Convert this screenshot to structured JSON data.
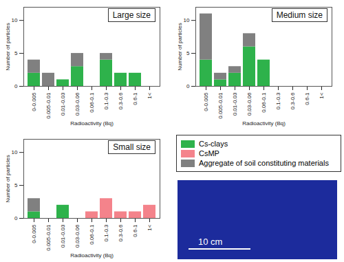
{
  "chart_data": [
    {
      "type": "bar",
      "title": "Large size",
      "stacked": true,
      "x_label": "Radioactivity (Bq)",
      "y_label": "Number of particles",
      "categories": [
        "0-0.005",
        "0.005-0.01",
        "0.01-0.03",
        "0.03-0.06",
        "0.06-0.1",
        "0.1-0.3",
        "0.3-0.6",
        "0.6-1",
        "1<"
      ],
      "series": [
        {
          "name": "Cs-clays",
          "color": "#2eb24b",
          "values": [
            2,
            0,
            1,
            3,
            0,
            4,
            2,
            2,
            0
          ]
        },
        {
          "name": "CsMP",
          "color": "#f4838b",
          "values": [
            0,
            0,
            0,
            0,
            0,
            0,
            0,
            0,
            0
          ]
        },
        {
          "name": "Aggregate of soil constituting materials",
          "color": "#808080",
          "values": [
            2,
            2,
            0,
            2,
            0,
            1,
            0,
            0,
            0
          ]
        }
      ],
      "ylim": [
        0,
        12
      ],
      "yticks": [
        0,
        5,
        10
      ]
    },
    {
      "type": "bar",
      "title": "Medium size",
      "stacked": true,
      "x_label": "Radioactivity (Bq)",
      "y_label": "Number of particles",
      "categories": [
        "0-0.005",
        "0.005-0.01",
        "0.01-0.03",
        "0.03-0.06",
        "0.06-0.1",
        "0.1-0.3",
        "0.3-0.6",
        "0.6-1",
        "1<"
      ],
      "series": [
        {
          "name": "Cs-clays",
          "color": "#2eb24b",
          "values": [
            4,
            1,
            2,
            6,
            4,
            0,
            0,
            0,
            0
          ]
        },
        {
          "name": "CsMP",
          "color": "#f4838b",
          "values": [
            0,
            0,
            0,
            0,
            0,
            0,
            0,
            0,
            0
          ]
        },
        {
          "name": "Aggregate of soil constituting materials",
          "color": "#808080",
          "values": [
            7,
            1,
            1,
            2,
            0,
            0,
            0,
            0,
            0
          ]
        }
      ],
      "ylim": [
        0,
        12
      ],
      "yticks": [
        0,
        5,
        10
      ]
    },
    {
      "type": "bar",
      "title": "Small size",
      "stacked": true,
      "x_label": "Radioactivity (Bq)",
      "y_label": "Number of particles",
      "categories": [
        "0-0.005",
        "0.005-0.01",
        "0.01-0.03",
        "0.03-0.06",
        "0.06-0.1",
        "0.1-0.3",
        "0.3-0.6",
        "0.6-1",
        "1<"
      ],
      "series": [
        {
          "name": "Cs-clays",
          "color": "#2eb24b",
          "values": [
            1,
            0,
            2,
            0,
            0,
            0,
            0,
            0,
            0
          ]
        },
        {
          "name": "CsMP",
          "color": "#f4838b",
          "values": [
            0,
            0,
            0,
            0,
            1,
            3,
            1,
            1,
            2
          ]
        },
        {
          "name": "Aggregate of soil constituting materials",
          "color": "#808080",
          "values": [
            2,
            0,
            0,
            0,
            0,
            0,
            0,
            0,
            0
          ]
        }
      ],
      "ylim": [
        0,
        12
      ],
      "yticks": [
        0,
        5,
        10
      ]
    }
  ],
  "image": {
    "scale_bar_label": "10 cm"
  }
}
